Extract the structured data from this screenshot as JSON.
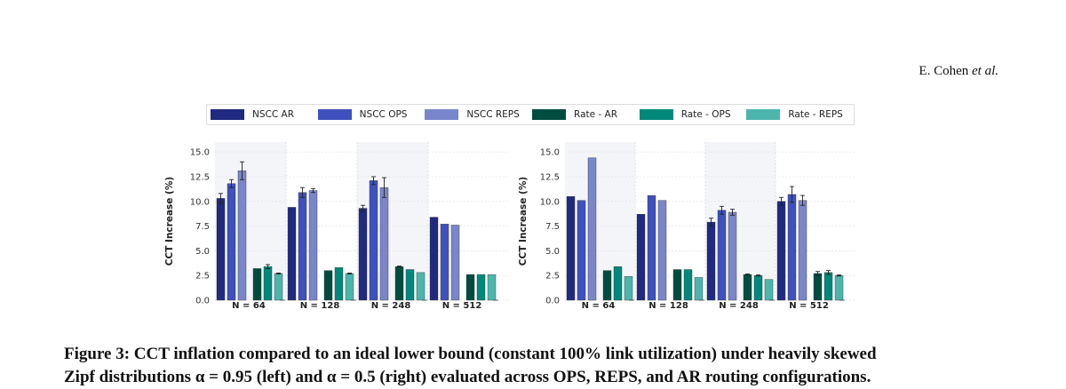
{
  "header": {
    "author": "E. Cohen",
    "etal": "et al."
  },
  "legend": [
    {
      "label": "NSCC AR",
      "color": "#1f2a80"
    },
    {
      "label": "NSCC OPS",
      "color": "#3f51be"
    },
    {
      "label": "NSCC REPS",
      "color": "#7986cb"
    },
    {
      "label": "Rate - AR",
      "color": "#004d40"
    },
    {
      "label": "Rate - OPS",
      "color": "#00897b"
    },
    {
      "label": "Rate - REPS",
      "color": "#4db6ac"
    }
  ],
  "caption": {
    "line1": "Figure 3: CCT inflation compared to an ideal lower bound (constant 100% link utilization) under heavily skewed",
    "line2": "Zipf distributions α = 0.95 (left) and α = 0.5 (right) evaluated across OPS, REPS, and AR routing configurations."
  },
  "chart_data": [
    {
      "type": "bar",
      "ylabel": "CCT Increase (%)",
      "ylim": [
        0,
        16
      ],
      "yticks": [
        "0.0",
        "2.5",
        "5.0",
        "7.5",
        "10.0",
        "12.5",
        "15.0"
      ],
      "categories": [
        "N = 64",
        "N = 128",
        "N = 248",
        "N = 512"
      ],
      "series": [
        {
          "name": "NSCC AR",
          "values": [
            10.3,
            9.4,
            9.3,
            8.4
          ],
          "err": [
            0.5,
            0,
            0.3,
            0
          ]
        },
        {
          "name": "NSCC OPS",
          "values": [
            11.8,
            10.9,
            12.1,
            7.7
          ],
          "err": [
            0.4,
            0.5,
            0.4,
            0
          ]
        },
        {
          "name": "NSCC REPS",
          "values": [
            13.1,
            11.1,
            11.4,
            7.6
          ],
          "err": [
            0.9,
            0.2,
            1.0,
            0
          ]
        },
        {
          "name": "Rate - AR",
          "values": [
            3.2,
            3.0,
            3.4,
            2.6
          ],
          "err": [
            0,
            0,
            0.05,
            0
          ]
        },
        {
          "name": "Rate - OPS",
          "values": [
            3.4,
            3.3,
            3.1,
            2.6
          ],
          "err": [
            0.2,
            0,
            0,
            0
          ]
        },
        {
          "name": "Rate - REPS",
          "values": [
            2.7,
            2.7,
            2.8,
            2.6
          ],
          "err": [
            0.05,
            0.05,
            0,
            0
          ]
        }
      ]
    },
    {
      "type": "bar",
      "ylabel": "CCT Increase (%)",
      "ylim": [
        0,
        16
      ],
      "yticks": [
        "0.0",
        "2.5",
        "5.0",
        "7.5",
        "10.0",
        "12.5",
        "15.0"
      ],
      "categories": [
        "N = 64",
        "N = 128",
        "N = 248",
        "N = 512"
      ],
      "series": [
        {
          "name": "NSCC AR",
          "values": [
            10.5,
            8.7,
            7.9,
            10.0
          ],
          "err": [
            0,
            0,
            0.4,
            0.4
          ]
        },
        {
          "name": "NSCC OPS",
          "values": [
            10.1,
            10.6,
            9.1,
            10.7
          ],
          "err": [
            0,
            0,
            0.4,
            0.8
          ]
        },
        {
          "name": "NSCC REPS",
          "values": [
            14.4,
            10.1,
            8.9,
            10.1
          ],
          "err": [
            0,
            0,
            0.3,
            0.5
          ]
        },
        {
          "name": "Rate - AR",
          "values": [
            3.0,
            3.1,
            2.6,
            2.7
          ],
          "err": [
            0,
            0,
            0.05,
            0.2
          ]
        },
        {
          "name": "Rate - OPS",
          "values": [
            3.4,
            3.1,
            2.5,
            2.8
          ],
          "err": [
            0,
            0,
            0.05,
            0.2
          ]
        },
        {
          "name": "Rate - REPS",
          "values": [
            2.4,
            2.3,
            2.1,
            2.5
          ],
          "err": [
            0,
            0,
            0,
            0.05
          ]
        }
      ]
    }
  ]
}
